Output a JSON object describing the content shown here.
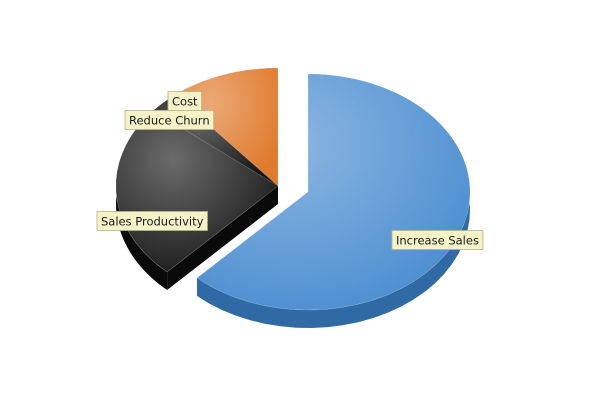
{
  "chart_data": {
    "type": "pie",
    "style": "3d-exploded",
    "title": "",
    "legend": "none",
    "labels": [
      "Increase Sales",
      "Sales Productivity",
      "Reduce Churn",
      "Cost"
    ],
    "values": [
      62,
      24,
      3,
      11
    ],
    "colors": [
      "#4d8fd1",
      "#1c1c1c",
      "#141414",
      "#e07b2d"
    ],
    "side_colors": [
      "#2f6aa5",
      "#0a0a0a",
      "#0a0a0a",
      "#8e4413"
    ],
    "data_labels": true,
    "label_bg": "#f6f2c8"
  }
}
